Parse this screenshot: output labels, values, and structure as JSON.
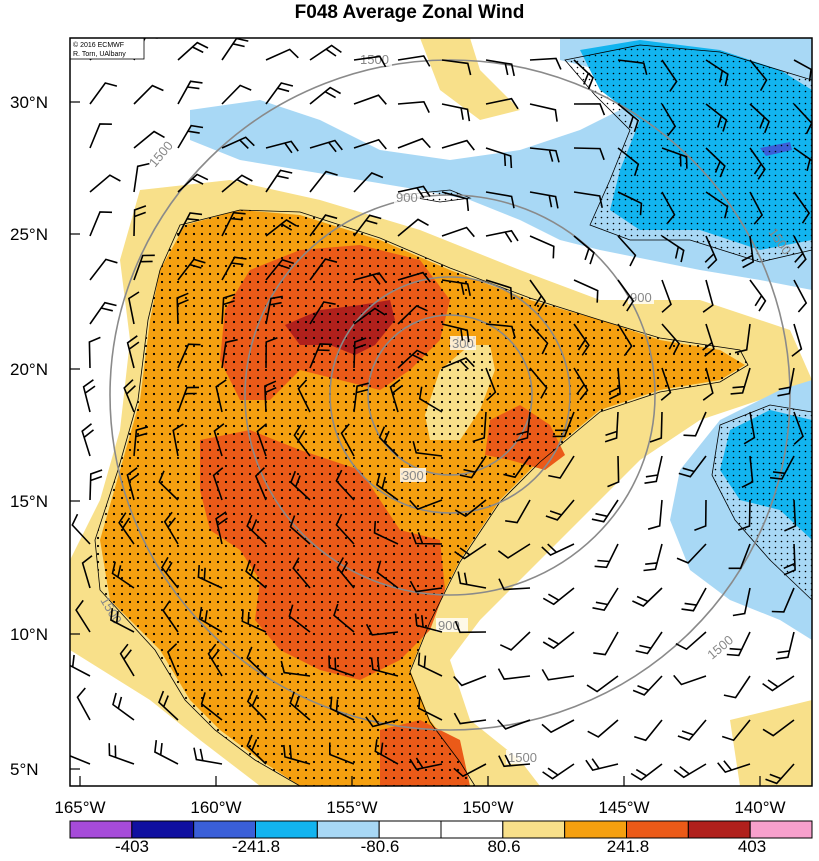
{
  "title": "F048 Average Zonal Wind",
  "credit": [
    "© 2016 ECMWF",
    "R. Torn, UAlbany"
  ],
  "lat_labels": [
    "30°N",
    "25°N",
    "20°N",
    "15°N",
    "10°N",
    "5°N"
  ],
  "lon_labels": [
    "165°W",
    "160°W",
    "155°W",
    "150°W",
    "145°W",
    "140°W"
  ],
  "colorbar": {
    "tick_labels": [
      "-403",
      "-241.8",
      "-80.6",
      "80.6",
      "241.8",
      "403"
    ],
    "colors": [
      "#a64bd9",
      "#1010a0",
      "#3a5fd8",
      "#12b4ef",
      "#a8d8f5",
      "#ffffff",
      "#ffffff",
      "#f8e08a",
      "#f5a010",
      "#eb5a18",
      "#b0201c",
      "#f7a0cc"
    ]
  },
  "ring_labels": [
    "300",
    "300",
    "900",
    "900",
    "900",
    "1500",
    "1500",
    "1500",
    "1500",
    "1500",
    "1500"
  ],
  "colors": {
    "strong_positive": "#b0201c",
    "positive_high": "#eb5a18",
    "positive_mid": "#f5a010",
    "positive_low": "#f8e08a",
    "negative_low": "#a8d8f5",
    "negative_mid": "#12b4ef",
    "negative_high": "#3a5fd8",
    "ring_color": "#8a8a8a"
  }
}
